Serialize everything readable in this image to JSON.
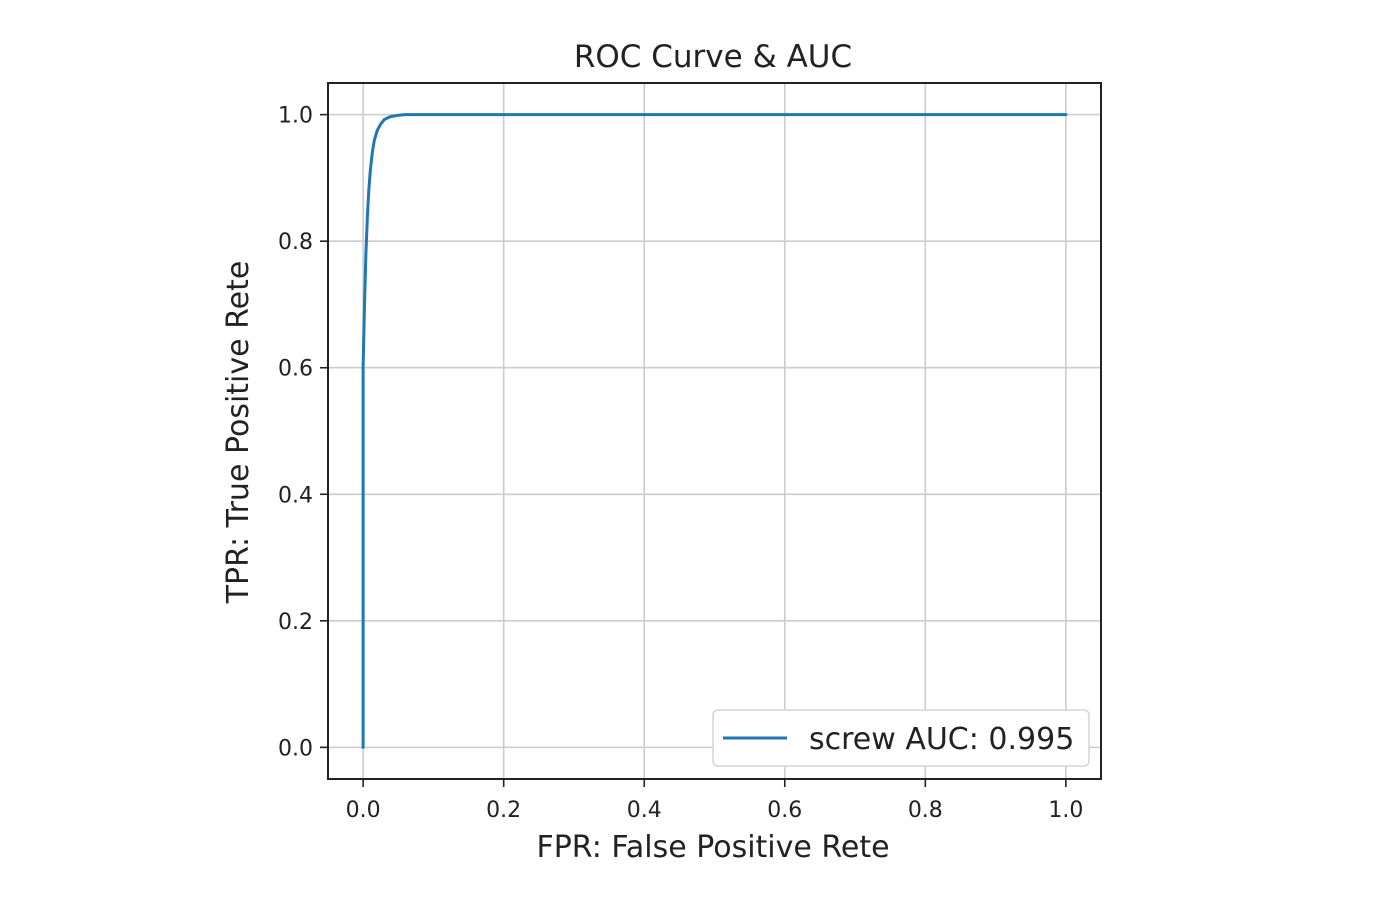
{
  "chart_data": {
    "type": "line",
    "title": "ROC Curve & AUC",
    "xlabel": "FPR: False Positive Rete",
    "ylabel": "TPR: True Positive Rete",
    "xlim": [
      -0.05,
      1.05
    ],
    "ylim": [
      -0.05,
      1.05
    ],
    "xticks": [
      0.0,
      0.2,
      0.4,
      0.6,
      0.8,
      1.0
    ],
    "xtick_labels": [
      "0.0",
      "0.2",
      "0.4",
      "0.6",
      "0.8",
      "1.0"
    ],
    "yticks": [
      0.0,
      0.2,
      0.4,
      0.6,
      0.8,
      1.0
    ],
    "ytick_labels": [
      "0.0",
      "0.2",
      "0.4",
      "0.6",
      "0.8",
      "1.0"
    ],
    "grid": true,
    "legend_position": "lower-right",
    "series": [
      {
        "name": "screw AUC: 0.995",
        "color": "#1f77b4",
        "x": [
          0.0,
          0.0,
          0.002,
          0.004,
          0.006,
          0.008,
          0.01,
          0.013,
          0.016,
          0.02,
          0.025,
          0.03,
          0.035,
          0.04,
          0.05,
          0.06,
          0.08,
          0.1,
          0.2,
          0.4,
          0.6,
          0.8,
          1.0
        ],
        "y": [
          0.0,
          0.6,
          0.7,
          0.78,
          0.84,
          0.88,
          0.91,
          0.94,
          0.96,
          0.975,
          0.985,
          0.992,
          0.995,
          0.997,
          0.999,
          1.0,
          1.0,
          1.0,
          1.0,
          1.0,
          1.0,
          1.0,
          1.0
        ]
      }
    ]
  }
}
